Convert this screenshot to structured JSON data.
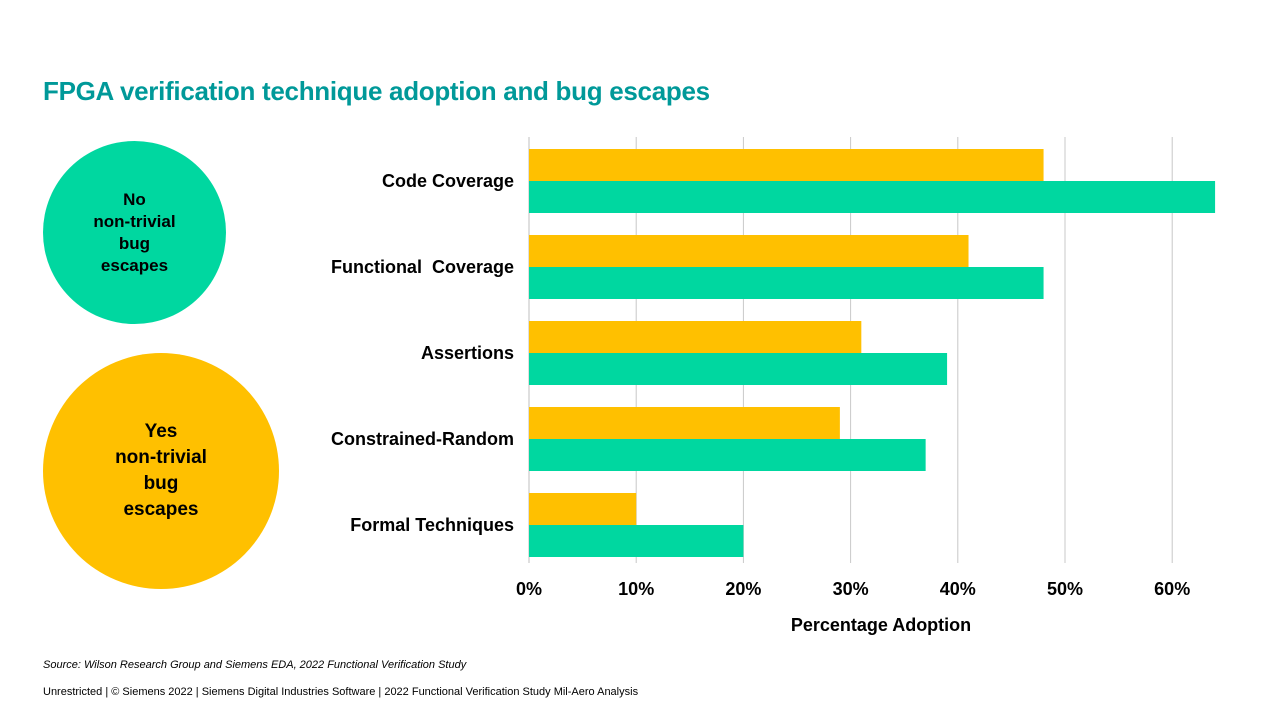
{
  "title": "FPGA verification technique adoption and bug escapes",
  "legend": {
    "no": {
      "label": "No\nnon-trivial\nbug\nescapes",
      "color": "#00D7A0"
    },
    "yes": {
      "label": "Yes\nnon-trivial\nbug\nescapes",
      "color": "#FFC000"
    }
  },
  "chart_data": {
    "type": "bar",
    "orientation": "horizontal",
    "categories": [
      "Code Coverage",
      "Functional  Coverage",
      "Assertions",
      "Constrained-Random",
      "Formal Techniques"
    ],
    "series": [
      {
        "name": "Yes non-trivial bug escapes",
        "color": "#FFC000",
        "values": [
          48,
          41,
          31,
          29,
          10
        ]
      },
      {
        "name": "No non-trivial bug escapes",
        "color": "#00D7A0",
        "values": [
          64,
          48,
          39,
          37,
          20
        ]
      }
    ],
    "xlabel": "Percentage Adoption",
    "ylabel": "",
    "xlim": [
      0,
      64
    ],
    "xticks": [
      0,
      10,
      20,
      30,
      40,
      50,
      60
    ],
    "xtick_labels": [
      "0%",
      "10%",
      "20%",
      "30%",
      "40%",
      "50%",
      "60%"
    ],
    "grid": true
  },
  "source": "Source:  Wilson Research Group and Siemens EDA, 2022 Functional Verification Study",
  "footer": "Unrestricted | © Siemens 2022 | Siemens Digital Industries Software | 2022 Functional Verification Study Mil-Aero Analysis"
}
